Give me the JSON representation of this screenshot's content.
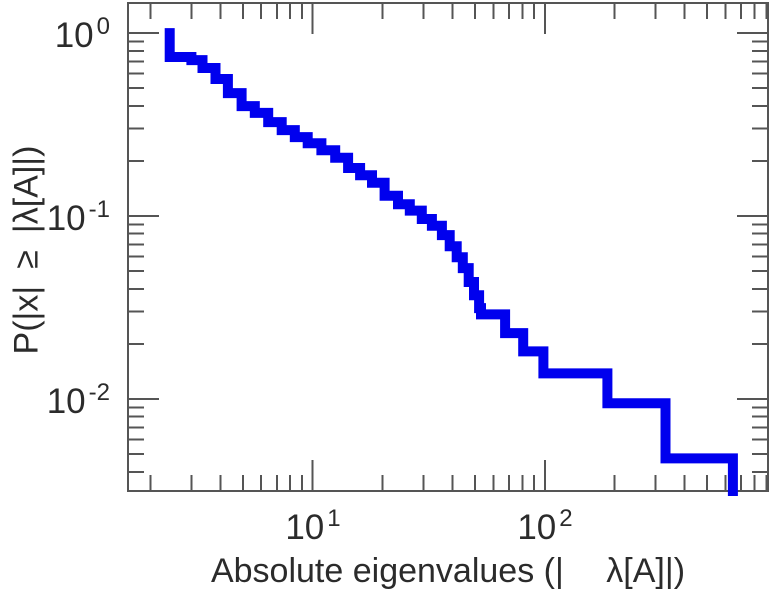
{
  "chart_data": {
    "type": "line",
    "style": "log-log step CCDF (empirical complementary cumulative distribution)",
    "title": "",
    "xlabel": "Absolute eigenvalues (|  λ[A]|)",
    "ylabel": "P(|x| ≥ |λ[A]|)",
    "x_scale": "log",
    "y_scale": "log",
    "xlim": [
      1.6,
      915
    ],
    "ylim": [
      0.00314,
      1.46
    ],
    "grid": false,
    "legend": "none",
    "x_ticks": [
      {
        "base": "10",
        "exp": "1",
        "value": 10
      },
      {
        "base": "10",
        "exp": "2",
        "value": 100
      }
    ],
    "y_ticks": [
      {
        "base": "10",
        "exp": "0",
        "value": 1
      },
      {
        "base": "10",
        "exp": "-1",
        "value": 0.1
      },
      {
        "base": "10",
        "exp": "-2",
        "value": 0.01
      }
    ],
    "minor_tick_multiples": [
      2,
      3,
      4,
      5,
      6,
      7,
      8,
      9
    ],
    "line_color": "#0000ee",
    "line_width": 10,
    "axis_color": "#555555",
    "text_color": "#2b2b2b",
    "background": "#ffffff",
    "points": [
      [
        2.42,
        1.0
      ],
      [
        2.42,
        0.74
      ],
      [
        3.0,
        0.712
      ],
      [
        3.35,
        0.644
      ],
      [
        3.81,
        0.561
      ],
      [
        4.31,
        0.47
      ],
      [
        4.94,
        0.399
      ],
      [
        5.63,
        0.366
      ],
      [
        6.43,
        0.326
      ],
      [
        7.35,
        0.295
      ],
      [
        8.37,
        0.27
      ],
      [
        9.51,
        0.25
      ],
      [
        10.9,
        0.229
      ],
      [
        12.5,
        0.208
      ],
      [
        14.2,
        0.183
      ],
      [
        16.0,
        0.167
      ],
      [
        18.0,
        0.152
      ],
      [
        20.4,
        0.129
      ],
      [
        23.3,
        0.116
      ],
      [
        26.2,
        0.107
      ],
      [
        29.5,
        0.0963
      ],
      [
        32.6,
        0.0884
      ],
      [
        36.0,
        0.0786
      ],
      [
        38.9,
        0.0683
      ],
      [
        41.7,
        0.0595
      ],
      [
        44.3,
        0.0519
      ],
      [
        47.0,
        0.0436
      ],
      [
        49.5,
        0.0369
      ],
      [
        52.1,
        0.0314
      ],
      [
        53.1,
        0.029
      ],
      [
        67.4,
        0.0229
      ],
      [
        80.7,
        0.0182
      ],
      [
        98.6,
        0.0138
      ],
      [
        186,
        0.00947
      ],
      [
        331,
        0.00473
      ],
      [
        646,
        0.00314
      ]
    ]
  }
}
